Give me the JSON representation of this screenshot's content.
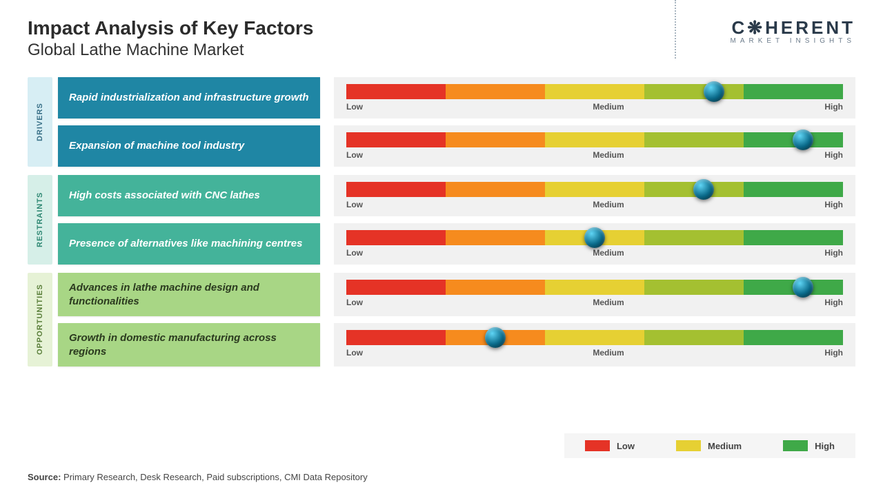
{
  "title": "Impact Analysis of Key Factors",
  "subtitle": "Global Lathe Machine Market",
  "logo": {
    "main": "C❋HERENT",
    "sub": "MARKET INSIGHTS"
  },
  "slider": {
    "segment_colors": [
      "#e53326",
      "#f68b1e",
      "#e6d033",
      "#a4c031",
      "#3fa948"
    ],
    "label_low": "Low",
    "label_medium": "Medium",
    "label_high": "High",
    "label_fontsize": 12,
    "label_color": "#555555",
    "knob_size": 30,
    "track_height": 22,
    "container_bg": "#f1f1f1"
  },
  "categories": [
    {
      "name": "DRIVERS",
      "sidebar_bg": "#d7eef4",
      "sidebar_color": "#3a7188",
      "factor_bg": "#1f86a4",
      "factor_text_color": "#ffffff",
      "items": [
        {
          "label": "Rapid industrialization and infrastructure growth",
          "value_pct": 74
        },
        {
          "label": "Expansion of machine tool industry",
          "value_pct": 92
        }
      ]
    },
    {
      "name": "RESTRAINTS",
      "sidebar_bg": "#d6efe8",
      "sidebar_color": "#2f8873",
      "factor_bg": "#44b39a",
      "factor_text_color": "#ffffff",
      "items": [
        {
          "label": "High costs associated with CNC lathes",
          "value_pct": 72
        },
        {
          "label": "Presence of alternatives like machining centres",
          "value_pct": 50
        }
      ]
    },
    {
      "name": "OPPORTUNITIES",
      "sidebar_bg": "#e6f2d6",
      "sidebar_color": "#5a7f3a",
      "factor_bg": "#a8d685",
      "factor_text_color": "#2b3a1f",
      "items": [
        {
          "label": "Advances in lathe machine design and functionalities",
          "value_pct": 92
        },
        {
          "label": "Growth in domestic manufacturing across regions",
          "value_pct": 30
        }
      ]
    }
  ],
  "legend": {
    "bg": "#f5f5f5",
    "items": [
      {
        "label": "Low",
        "color": "#e53326"
      },
      {
        "label": "Medium",
        "color": "#e6d033"
      },
      {
        "label": "High",
        "color": "#3fa948"
      }
    ]
  },
  "source": {
    "prefix": "Source:",
    "text": "Primary Research, Desk Research, Paid subscriptions, CMI Data Repository"
  }
}
